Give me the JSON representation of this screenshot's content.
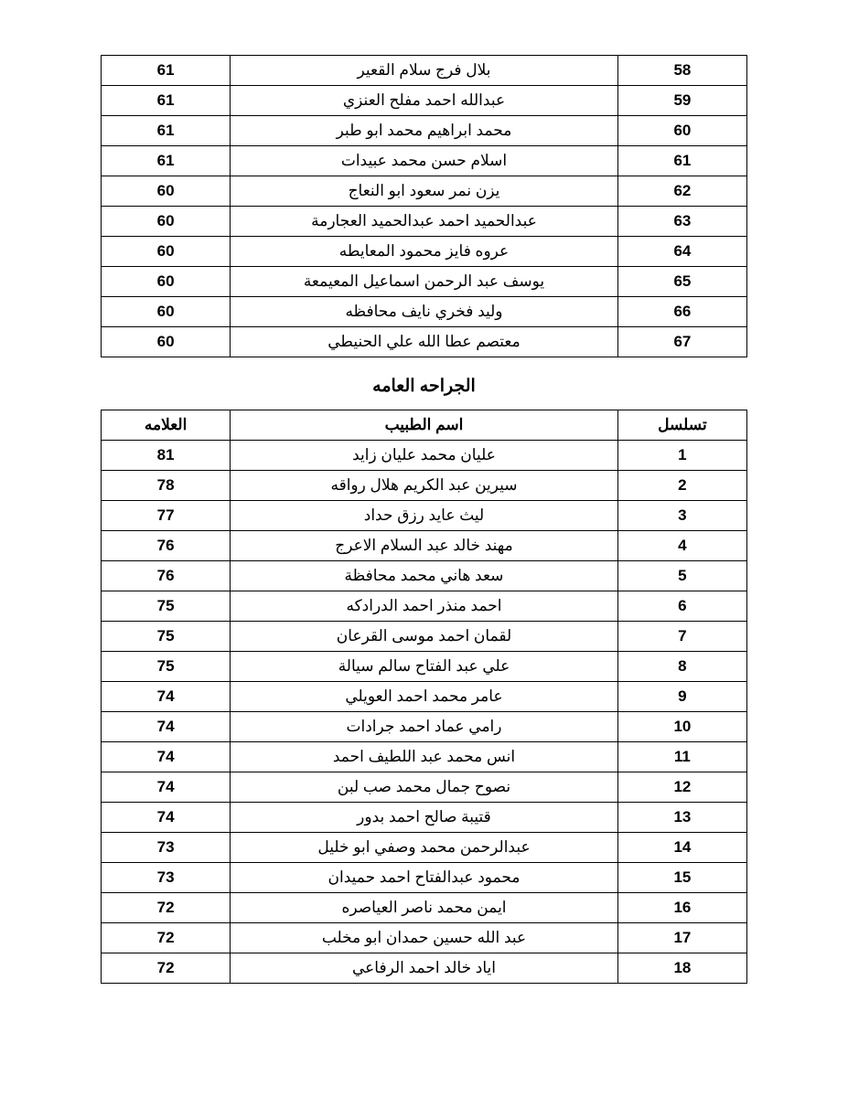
{
  "table1": {
    "rows": [
      {
        "seq": "58",
        "name": "بلال فرج سلام القعير",
        "score": "61"
      },
      {
        "seq": "59",
        "name": "عبدالله احمد مفلح العنزي",
        "score": "61"
      },
      {
        "seq": "60",
        "name": "محمد ابراهيم محمد ابو طبر",
        "score": "61"
      },
      {
        "seq": "61",
        "name": "اسلام حسن محمد عبيدات",
        "score": "61"
      },
      {
        "seq": "62",
        "name": "يزن نمر سعود ابو النعاج",
        "score": "60"
      },
      {
        "seq": "63",
        "name": "عبدالحميد احمد عبدالحميد العجارمة",
        "score": "60"
      },
      {
        "seq": "64",
        "name": "عروه فايز محمود المعايطه",
        "score": "60"
      },
      {
        "seq": "65",
        "name": "يوسف عبد الرحمن اسماعيل المعيمعة",
        "score": "60"
      },
      {
        "seq": "66",
        "name": "وليد فخري نايف محافظه",
        "score": "60"
      },
      {
        "seq": "67",
        "name": "معتصم عطا الله علي الحنيطي",
        "score": "60"
      }
    ]
  },
  "section_title": "الجراحه العامه",
  "table2": {
    "headers": {
      "seq": "تسلسل",
      "name": "اسم الطبيب",
      "score": "العلامه"
    },
    "rows": [
      {
        "seq": "1",
        "name": "عليان محمد عليان زايد",
        "score": "81"
      },
      {
        "seq": "2",
        "name": "سيرين عبد الكريم هلال رواقه",
        "score": "78"
      },
      {
        "seq": "3",
        "name": "ليث عايد رزق حداد",
        "score": "77"
      },
      {
        "seq": "4",
        "name": "مهند خالد عبد السلام الاعرج",
        "score": "76"
      },
      {
        "seq": "5",
        "name": "سعد هاني محمد محافظة",
        "score": "76"
      },
      {
        "seq": "6",
        "name": "احمد منذر احمد الدرادكه",
        "score": "75"
      },
      {
        "seq": "7",
        "name": "لقمان احمد موسى القرعان",
        "score": "75"
      },
      {
        "seq": "8",
        "name": "علي عبد الفتاح سالم سيالة",
        "score": "75"
      },
      {
        "seq": "9",
        "name": "عامر محمد احمد العويلي",
        "score": "74"
      },
      {
        "seq": "10",
        "name": "رامي عماد احمد جرادات",
        "score": "74"
      },
      {
        "seq": "11",
        "name": "انس محمد عبد اللطيف احمد",
        "score": "74"
      },
      {
        "seq": "12",
        "name": "نصوح جمال محمد صب لبن",
        "score": "74"
      },
      {
        "seq": "13",
        "name": "قتيبة صالح احمد بدور",
        "score": "74"
      },
      {
        "seq": "14",
        "name": "عبدالرحمن محمد وصفي ابو خليل",
        "score": "73"
      },
      {
        "seq": "15",
        "name": "محمود عبدالفتاح احمد حميدان",
        "score": "73"
      },
      {
        "seq": "16",
        "name": "ايمن محمد ناصر العياصره",
        "score": "72"
      },
      {
        "seq": "17",
        "name": "عبد الله حسين حمدان ابو مخلب",
        "score": "72"
      },
      {
        "seq": "18",
        "name": "اياد خالد احمد الرفاعي",
        "score": "72"
      }
    ]
  },
  "styling": {
    "background_color": "#ffffff",
    "border_color": "#000000",
    "font_family": "Arial",
    "cell_fontsize": 17,
    "header_fontsize": 17,
    "title_fontsize": 19,
    "col_score_width": "20%",
    "col_name_width": "60%",
    "col_seq_width": "20%",
    "cell_padding": "6px 4px",
    "text_align": "center"
  }
}
